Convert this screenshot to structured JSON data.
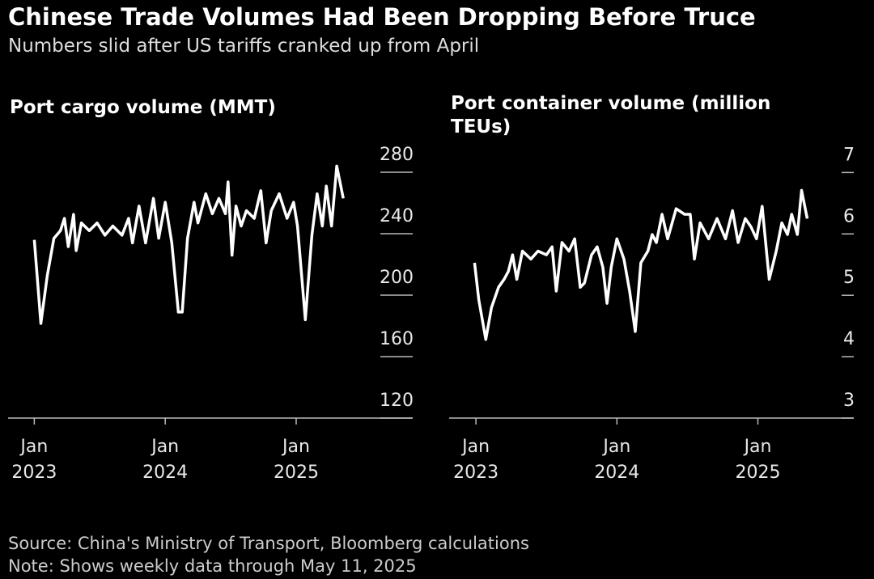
{
  "header": {
    "title": "Chinese Trade Volumes Had Been Dropping Before Truce",
    "subtitle": "Numbers slid after US tariffs cranked up from April"
  },
  "chart_data": [
    {
      "type": "line",
      "title": "Port cargo volume (MMT)",
      "color": "#ffffff",
      "x": [
        2023.0,
        2023.05,
        2023.1,
        2023.15,
        2023.2,
        2023.23,
        2023.26,
        2023.3,
        2023.32,
        2023.36,
        2023.42,
        2023.48,
        2023.54,
        2023.6,
        2023.67,
        2023.72,
        2023.75,
        2023.8,
        2023.85,
        2023.91,
        2023.95,
        2024.0,
        2024.05,
        2024.1,
        2024.13,
        2024.17,
        2024.22,
        2024.25,
        2024.31,
        2024.36,
        2024.41,
        2024.46,
        2024.48,
        2024.51,
        2024.54,
        2024.58,
        2024.62,
        2024.68,
        2024.73,
        2024.77,
        2024.81,
        2024.87,
        2024.93,
        2024.98,
        2025.01,
        2025.07,
        2025.12,
        2025.16,
        2025.2,
        2025.23,
        2025.27,
        2025.31,
        2025.36
      ],
      "values": [
        236,
        181.6,
        213,
        237,
        242,
        250,
        231.6,
        252.6,
        229,
        247,
        242,
        247,
        239,
        245,
        239,
        250,
        234,
        258,
        234,
        263,
        237,
        260.5,
        234,
        189,
        189,
        237,
        260.5,
        247,
        266,
        253,
        263,
        253,
        273.7,
        226,
        258,
        245,
        255,
        250,
        268,
        234,
        255,
        266,
        250,
        260.5,
        245,
        184,
        239,
        266,
        245,
        271,
        245,
        284,
        263
      ],
      "xlim": [
        2022.8,
        2025.89
      ],
      "ylim": [
        120,
        300
      ],
      "xticks": [
        {
          "value": 2023,
          "label": "Jan 2023"
        },
        {
          "value": 2024,
          "label": "Jan 2024"
        },
        {
          "value": 2025,
          "label": "Jan 2025"
        }
      ],
      "yticks": [
        120,
        160,
        200,
        240,
        280
      ]
    },
    {
      "type": "line",
      "title": "Port container volume (million TEUs)",
      "color": "#ffffff",
      "x": [
        2022.99,
        2023.02,
        2023.07,
        2023.11,
        2023.16,
        2023.2,
        2023.23,
        2023.26,
        2023.29,
        2023.33,
        2023.39,
        2023.44,
        2023.5,
        2023.54,
        2023.57,
        2023.61,
        2023.66,
        2023.7,
        2023.74,
        2023.77,
        2023.82,
        2023.86,
        2023.9,
        2023.93,
        2023.96,
        2024.0,
        2024.05,
        2024.09,
        2024.13,
        2024.17,
        2024.22,
        2024.25,
        2024.28,
        2024.32,
        2024.36,
        2024.42,
        2024.48,
        2024.52,
        2024.55,
        2024.59,
        2024.65,
        2024.71,
        2024.77,
        2024.82,
        2024.86,
        2024.91,
        2024.95,
        2024.99,
        2025.03,
        2025.08,
        2025.13,
        2025.17,
        2025.21,
        2025.24,
        2025.28,
        2025.31,
        2025.35
      ],
      "values": [
        5.53,
        4.93,
        4.28,
        4.8,
        5.13,
        5.26,
        5.39,
        5.66,
        5.26,
        5.72,
        5.59,
        5.72,
        5.66,
        5.79,
        5.07,
        5.86,
        5.72,
        5.92,
        5.13,
        5.2,
        5.66,
        5.79,
        5.46,
        4.87,
        5.46,
        5.92,
        5.59,
        5.07,
        4.41,
        5.53,
        5.72,
        5.99,
        5.86,
        6.32,
        5.92,
        6.41,
        6.32,
        6.32,
        5.59,
        6.18,
        5.92,
        6.25,
        5.92,
        6.38,
        5.86,
        6.25,
        6.12,
        5.92,
        6.45,
        5.26,
        5.72,
        6.18,
        5.99,
        6.32,
        5.99,
        6.71,
        6.25
      ],
      "xlim": [
        2022.81,
        2025.68
      ],
      "ylim": [
        3,
        7.4
      ],
      "xticks": [
        {
          "value": 2023,
          "label": "Jan 2023"
        },
        {
          "value": 2024,
          "label": "Jan 2024"
        },
        {
          "value": 2025,
          "label": "Jan 2025"
        }
      ],
      "yticks": [
        3,
        4,
        5,
        6,
        7
      ]
    }
  ],
  "footer": {
    "source": "Source: China's Ministry of Transport, Bloomberg calculations",
    "note": "Note: Shows weekly data through May 11, 2025"
  }
}
